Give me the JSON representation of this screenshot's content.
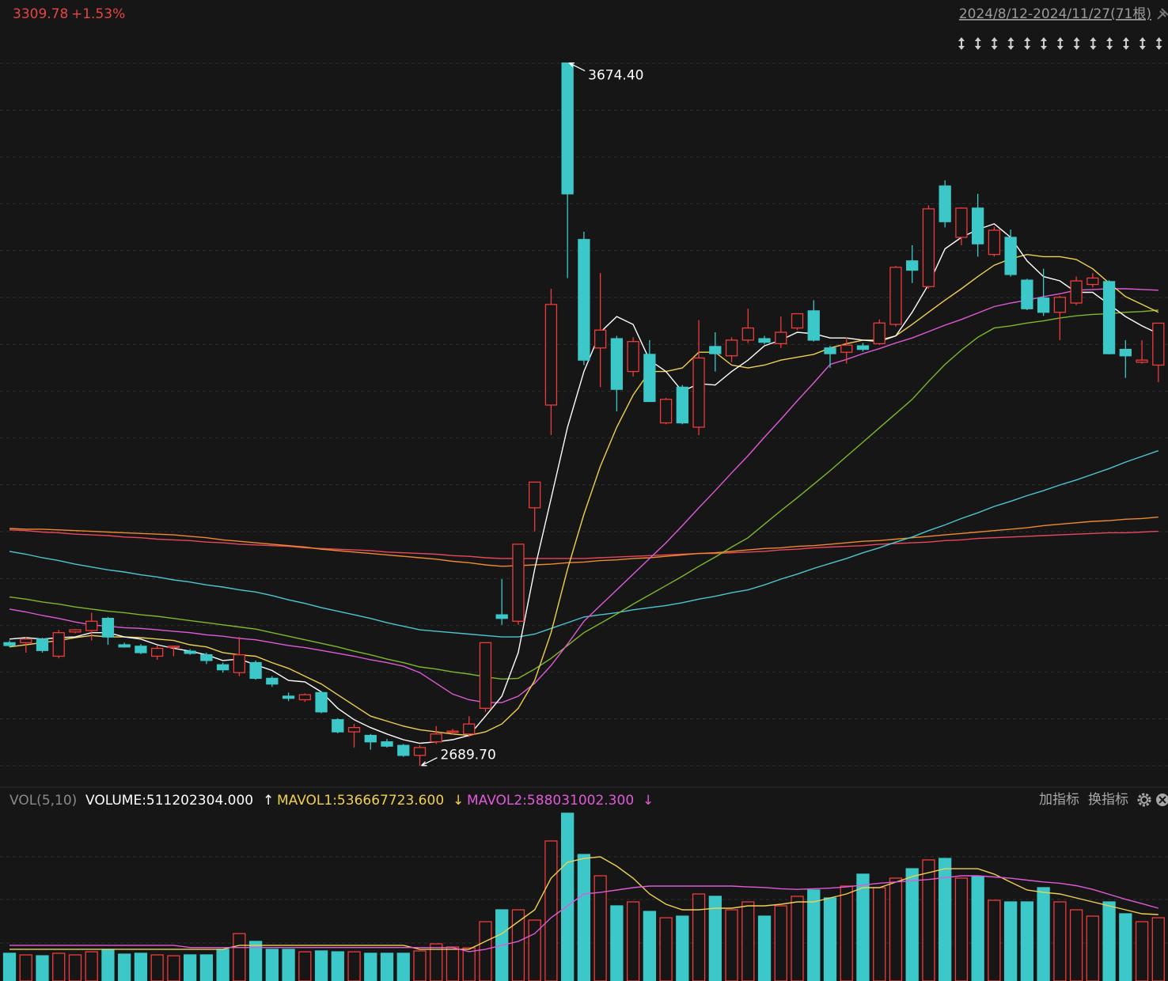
{
  "chart_data": [
    {
      "type": "candlestick",
      "title": "3309.78",
      "subtitle": "+1.53%",
      "range_label": "2024/8/12-2024/11/27(71根)",
      "max_label": "3674.40",
      "min_label": "2689.70",
      "ylim": [
        2665,
        3705
      ],
      "up_color": "#ee3b3b",
      "down_color": "#3cc8c8",
      "title_color": "#e54545",
      "open": [
        2862,
        2862,
        2867,
        2843,
        2877,
        2879,
        2896,
        2859,
        2857,
        2843,
        2856,
        2850,
        2845,
        2831,
        2820,
        2834,
        2812,
        2787,
        2782,
        2792,
        2754,
        2737,
        2732,
        2723,
        2718,
        2704,
        2723,
        2737,
        2734,
        2770,
        2901,
        2892,
        3051,
        3195,
        3674.4,
        3427,
        3275,
        3288,
        3242,
        3266,
        3170,
        3220,
        3164,
        3277,
        3264,
        3286,
        3288,
        3281,
        3303,
        3327,
        3275,
        3269,
        3278,
        3281,
        3308,
        3397,
        3361,
        3502,
        3430,
        3471,
        3406,
        3430,
        3370,
        3345,
        3325,
        3338,
        3364,
        3368,
        3273,
        3255,
        3251
      ],
      "high": [
        2865,
        2870,
        2869,
        2880,
        2881,
        2904,
        2898,
        2862,
        2860,
        2858,
        2858,
        2853,
        2848,
        2834,
        2870,
        2837,
        2815,
        2792,
        2791,
        2794,
        2756,
        2748,
        2734,
        2727,
        2720,
        2718,
        2745,
        2741,
        2759,
        2862,
        2951,
        3000,
        3087,
        3358,
        3674.4,
        3438,
        3380,
        3292,
        3290,
        3286,
        3205,
        3223,
        3314,
        3297,
        3290,
        3330,
        3292,
        3319,
        3323,
        3342,
        3278,
        3290,
        3282,
        3315,
        3390,
        3419,
        3475,
        3510,
        3472,
        3491,
        3445,
        3441,
        3372,
        3386,
        3348,
        3375,
        3380,
        3370,
        3286,
        3286,
        3306
      ],
      "low": [
        2856,
        2848,
        2848,
        2840,
        2875,
        2865,
        2859,
        2855,
        2846,
        2838,
        2843,
        2845,
        2832,
        2820,
        2815,
        2810,
        2800,
        2780,
        2779,
        2763,
        2735,
        2715,
        2712,
        2715,
        2702,
        2689.7,
        2720,
        2733,
        2730,
        2765,
        2887,
        2887,
        3018,
        3153,
        3373,
        3251,
        3220,
        3186,
        3235,
        3200,
        3168,
        3168,
        3153,
        3242,
        3255,
        3282,
        3280,
        3275,
        3300,
        3284,
        3247,
        3253,
        3270,
        3279,
        3305,
        3366,
        3358,
        3444,
        3419,
        3403,
        3403,
        3375,
        3328,
        3320,
        3286,
        3335,
        3360,
        3266,
        3233,
        3253,
        3227
      ],
      "close": [
        2858,
        2867,
        2851,
        2876,
        2880,
        2892,
        2870,
        2856,
        2848,
        2854,
        2857,
        2847,
        2837,
        2824,
        2845,
        2812,
        2804,
        2784,
        2789,
        2765,
        2737,
        2743,
        2723,
        2717,
        2704,
        2715,
        2734,
        2738,
        2748,
        2862,
        2896,
        3000,
        3087,
        3336,
        3491,
        3258,
        3300,
        3217,
        3284,
        3200,
        3203,
        3170,
        3261,
        3267,
        3286,
        3303,
        3283,
        3297,
        3323,
        3286,
        3267,
        3279,
        3273,
        3310,
        3388,
        3384,
        3470,
        3452,
        3471,
        3421,
        3440,
        3378,
        3330,
        3325,
        3346,
        3369,
        3373,
        3267,
        3264,
        3258,
        3309.78
      ],
      "lines": [
        {
          "color": "#e8485c",
          "values": [
            3020,
            3019,
            3017,
            3016,
            3014,
            3013,
            3012,
            3010,
            3009,
            3007,
            3006,
            3005,
            3003,
            3002,
            3000,
            2999,
            2998,
            2997,
            2995,
            2994,
            2993,
            2992,
            2991,
            2989,
            2988,
            2987,
            2986,
            2984,
            2983,
            2981,
            2980,
            2980,
            2980,
            2980,
            2980,
            2980,
            2981,
            2982,
            2983,
            2984,
            2985,
            2986,
            2987,
            2987,
            2988,
            2989,
            2990,
            2992,
            2993,
            2995,
            2996,
            2997,
            2998,
            3000,
            3001,
            3002,
            3003,
            3005,
            3006,
            3008,
            3009,
            3010,
            3011,
            3012,
            3013,
            3014,
            3015,
            3016,
            3016,
            3017,
            3018
          ]
        },
        {
          "color": "#f08a2c",
          "values": [
            3022,
            3021,
            3021,
            3020,
            3019,
            3018,
            3017,
            3016,
            3015,
            3014,
            3013,
            3011,
            3009,
            3006,
            3004,
            3002,
            3000,
            2998,
            2996,
            2993,
            2991,
            2989,
            2987,
            2985,
            2983,
            2981,
            2979,
            2976,
            2974,
            2971,
            2969,
            2970,
            2971,
            2972,
            2974,
            2975,
            2977,
            2978,
            2980,
            2981,
            2983,
            2985,
            2987,
            2988,
            2990,
            2992,
            2994,
            2995,
            2997,
            2998,
            3000,
            3002,
            3004,
            3005,
            3007,
            3009,
            3011,
            3013,
            3015,
            3017,
            3019,
            3021,
            3023,
            3026,
            3028,
            3030,
            3032,
            3033,
            3035,
            3036,
            3038
          ]
        },
        {
          "color": "#4cc6d0",
          "values": [
            2990,
            2986,
            2981,
            2977,
            2972,
            2968,
            2964,
            2961,
            2957,
            2954,
            2950,
            2947,
            2943,
            2940,
            2936,
            2933,
            2928,
            2922,
            2917,
            2911,
            2906,
            2901,
            2896,
            2890,
            2885,
            2880,
            2878,
            2876,
            2874,
            2872,
            2870,
            2870,
            2874,
            2882,
            2890,
            2898,
            2901,
            2904,
            2908,
            2911,
            2914,
            2918,
            2923,
            2927,
            2932,
            2936,
            2943,
            2951,
            2958,
            2966,
            2973,
            2980,
            2988,
            2995,
            3003,
            3010,
            3019,
            3027,
            3036,
            3044,
            3053,
            3060,
            3068,
            3075,
            3083,
            3090,
            3098,
            3106,
            3115,
            3123,
            3131
          ]
        },
        {
          "color": "#7fb82a",
          "values": [
            2926,
            2923,
            2919,
            2916,
            2912,
            2909,
            2906,
            2904,
            2901,
            2899,
            2896,
            2893,
            2890,
            2887,
            2884,
            2881,
            2876,
            2871,
            2866,
            2861,
            2856,
            2850,
            2845,
            2839,
            2834,
            2828,
            2825,
            2821,
            2818,
            2814,
            2811,
            2812,
            2825,
            2840,
            2858,
            2876,
            2889,
            2902,
            2916,
            2929,
            2942,
            2955,
            2969,
            2982,
            2996,
            3009,
            3028,
            3047,
            3065,
            3084,
            3103,
            3123,
            3143,
            3163,
            3183,
            3203,
            3228,
            3252,
            3272,
            3290,
            3303,
            3306,
            3310,
            3313,
            3317,
            3320,
            3322,
            3323,
            3325,
            3326,
            3328
          ]
        },
        {
          "color": "#e05ad8",
          "values": [
            2909,
            2905,
            2900,
            2896,
            2891,
            2887,
            2885,
            2883,
            2882,
            2880,
            2878,
            2876,
            2873,
            2871,
            2868,
            2866,
            2862,
            2858,
            2855,
            2851,
            2847,
            2843,
            2838,
            2834,
            2829,
            2820,
            2805,
            2790,
            2782,
            2778,
            2778,
            2787,
            2805,
            2830,
            2860,
            2892,
            2914,
            2936,
            2958,
            2980,
            3002,
            3026,
            3051,
            3075,
            3100,
            3124,
            3150,
            3175,
            3201,
            3226,
            3252,
            3259,
            3267,
            3274,
            3282,
            3289,
            3298,
            3307,
            3315,
            3324,
            3333,
            3338,
            3342,
            3347,
            3351,
            3356,
            3357,
            3358,
            3358,
            3357,
            3356
          ]
        },
        {
          "color": "#f0d050",
          "values": [
            2856,
            2859,
            2862,
            2865,
            2869,
            2872,
            2870,
            2870,
            2869,
            2867,
            2865,
            2859,
            2856,
            2848,
            2845,
            2843,
            2834,
            2826,
            2815,
            2804,
            2789,
            2774,
            2759,
            2752,
            2745,
            2740,
            2737,
            2734,
            2732,
            2737,
            2748,
            2770,
            2809,
            2876,
            2965,
            3042,
            3109,
            3164,
            3209,
            3242,
            3242,
            3247,
            3269,
            3269,
            3251,
            3247,
            3251,
            3258,
            3262,
            3266,
            3275,
            3281,
            3286,
            3286,
            3292,
            3308,
            3325,
            3342,
            3358,
            3375,
            3391,
            3400,
            3406,
            3403,
            3403,
            3399,
            3386,
            3366,
            3347,
            3336,
            3325
          ]
        },
        {
          "color": "#ffffff",
          "values": [
            2867,
            2869,
            2867,
            2869,
            2870,
            2876,
            2876,
            2870,
            2867,
            2859,
            2854,
            2850,
            2845,
            2837,
            2839,
            2831,
            2823,
            2809,
            2807,
            2793,
            2770,
            2754,
            2743,
            2734,
            2726,
            2721,
            2723,
            2726,
            2732,
            2759,
            2787,
            2848,
            2965,
            3064,
            3164,
            3242,
            3297,
            3319,
            3308,
            3258,
            3242,
            3214,
            3225,
            3223,
            3242,
            3258,
            3278,
            3286,
            3297,
            3295,
            3289,
            3289,
            3286,
            3284,
            3292,
            3325,
            3364,
            3414,
            3430,
            3441,
            3449,
            3430,
            3397,
            3375,
            3369,
            3353,
            3353,
            3336,
            3319,
            3306,
            3295
          ]
        }
      ]
    },
    {
      "type": "bar",
      "ylim": [
        0,
        1533600000
      ],
      "legend": [
        {
          "text": "VOL(5,10)",
          "color": "#8a8a8a"
        },
        {
          "text": "VOLUME:511202304.000",
          "color": "#ffffff"
        },
        {
          "text": "↑",
          "color": "#ffffff"
        },
        {
          "text": "MAVOL1:536667723.600",
          "color": "#f0d050"
        },
        {
          "text": "↓",
          "color": "#f0d050"
        },
        {
          "text": "MAVOL2:588031002.300",
          "color": "#e05ad8"
        },
        {
          "text": "↓",
          "color": "#e05ad8"
        }
      ],
      "buttons": [
        "加指标",
        "换指标"
      ],
      "values": [
        224000000,
        211000000,
        204000000,
        224000000,
        211000000,
        236000000,
        256000000,
        217000000,
        224000000,
        211000000,
        204000000,
        211000000,
        211000000,
        256000000,
        383000000,
        320000000,
        256000000,
        256000000,
        236000000,
        243000000,
        236000000,
        236000000,
        224000000,
        224000000,
        224000000,
        243000000,
        300000000,
        275000000,
        268000000,
        479000000,
        575000000,
        575000000,
        492000000,
        1131000000,
        1355000000,
        1022000000,
        850000000,
        607000000,
        639000000,
        562000000,
        511000000,
        524000000,
        703000000,
        684000000,
        575000000,
        639000000,
        524000000,
        607000000,
        684000000,
        735000000,
        671000000,
        767000000,
        863000000,
        754000000,
        831000000,
        907000000,
        978000000,
        990000000,
        831000000,
        843000000,
        652000000,
        639000000,
        639000000,
        754000000,
        639000000,
        575000000,
        524000000,
        639000000,
        543000000,
        479000000,
        511202304
      ],
      "lines": [
        {
          "color": "#f0d050",
          "values": [
            256000000,
            256000000,
            256000000,
            256000000,
            256000000,
            256000000,
            256000000,
            256000000,
            256000000,
            256000000,
            256000000,
            256000000,
            256000000,
            256000000,
            288000000,
            288000000,
            288000000,
            288000000,
            288000000,
            288000000,
            288000000,
            288000000,
            288000000,
            288000000,
            288000000,
            256000000,
            256000000,
            256000000,
            256000000,
            320000000,
            383000000,
            479000000,
            575000000,
            831000000,
            959000000,
            990000000,
            1003000000,
            927000000,
            831000000,
            703000000,
            620000000,
            575000000,
            575000000,
            588000000,
            588000000,
            607000000,
            607000000,
            620000000,
            639000000,
            639000000,
            671000000,
            703000000,
            754000000,
            754000000,
            799000000,
            843000000,
            875000000,
            907000000,
            907000000,
            907000000,
            863000000,
            799000000,
            735000000,
            716000000,
            703000000,
            671000000,
            639000000,
            607000000,
            575000000,
            543000000,
            536667723.6
          ]
        },
        {
          "color": "#e05ad8",
          "values": [
            288000000,
            288000000,
            288000000,
            288000000,
            288000000,
            288000000,
            288000000,
            288000000,
            288000000,
            288000000,
            288000000,
            270000000,
            270000000,
            270000000,
            270000000,
            270000000,
            270000000,
            270000000,
            270000000,
            270000000,
            270000000,
            270000000,
            270000000,
            270000000,
            270000000,
            270000000,
            270000000,
            270000000,
            237000000,
            256000000,
            288000000,
            320000000,
            383000000,
            511000000,
            607000000,
            703000000,
            716000000,
            735000000,
            754000000,
            767000000,
            767000000,
            767000000,
            767000000,
            767000000,
            767000000,
            760000000,
            755000000,
            745000000,
            740000000,
            745000000,
            750000000,
            760000000,
            775000000,
            790000000,
            800000000,
            810000000,
            820000000,
            835000000,
            850000000,
            850000000,
            840000000,
            830000000,
            815000000,
            800000000,
            790000000,
            770000000,
            740000000,
            700000000,
            660000000,
            625000000,
            588031002.3
          ]
        }
      ]
    }
  ]
}
